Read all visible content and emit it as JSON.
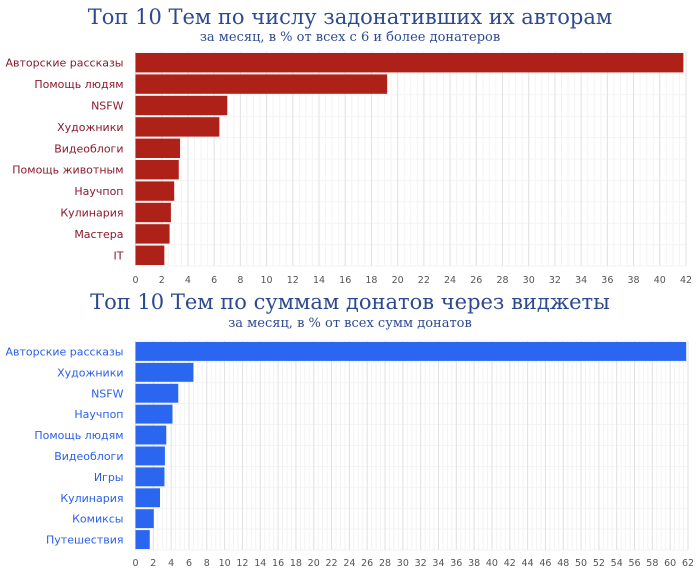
{
  "chart_data": [
    {
      "type": "bar",
      "orientation": "horizontal",
      "title": "Топ 10 Тем по числу задонативших их авторам",
      "subtitle": "за месяц, в % от всех с 6 и более донатеров",
      "categories": [
        "Авторские рассказы",
        "Помощь людям",
        "NSFW",
        "Художники",
        "Видеоблоги",
        "Помощь животным",
        "Научпоп",
        "Кулинария",
        "Мастера",
        "IT"
      ],
      "values": [
        41.8,
        19.2,
        7.0,
        6.4,
        3.4,
        3.3,
        2.95,
        2.7,
        2.6,
        2.2
      ],
      "xlim": [
        0,
        42
      ],
      "xticks": [
        0,
        2,
        4,
        6,
        8,
        10,
        12,
        14,
        16,
        18,
        20,
        22,
        24,
        26,
        28,
        30,
        32,
        34,
        36,
        38,
        40,
        42
      ],
      "xlabel": "",
      "ylabel": "",
      "grid": true,
      "bar_color": "#ae2118",
      "label_color": "#8b1a2e"
    },
    {
      "type": "bar",
      "orientation": "horizontal",
      "title": "Топ 10 Тем по суммам донатов через виджеты",
      "subtitle": "за месяц, в % от всех сумм донатов",
      "categories": [
        "Авторские рассказы",
        "Художники",
        "NSFW",
        "Научпоп",
        "Помощь людям",
        "Видеоблоги",
        "Игры",
        "Кулинария",
        "Комиксы",
        "Путешествия"
      ],
      "values": [
        61.8,
        6.5,
        4.8,
        4.15,
        3.45,
        3.3,
        3.25,
        2.75,
        2.05,
        1.6
      ],
      "xlim": [
        0,
        62
      ],
      "xticks": [
        0,
        2,
        4,
        6,
        8,
        10,
        12,
        14,
        16,
        18,
        20,
        22,
        24,
        26,
        28,
        30,
        32,
        34,
        36,
        38,
        40,
        42,
        44,
        46,
        48,
        50,
        52,
        54,
        56,
        58,
        60,
        62
      ],
      "xlabel": "",
      "ylabel": "",
      "grid": true,
      "bar_color": "#2a66f0",
      "label_color": "#2a5fe6"
    }
  ]
}
